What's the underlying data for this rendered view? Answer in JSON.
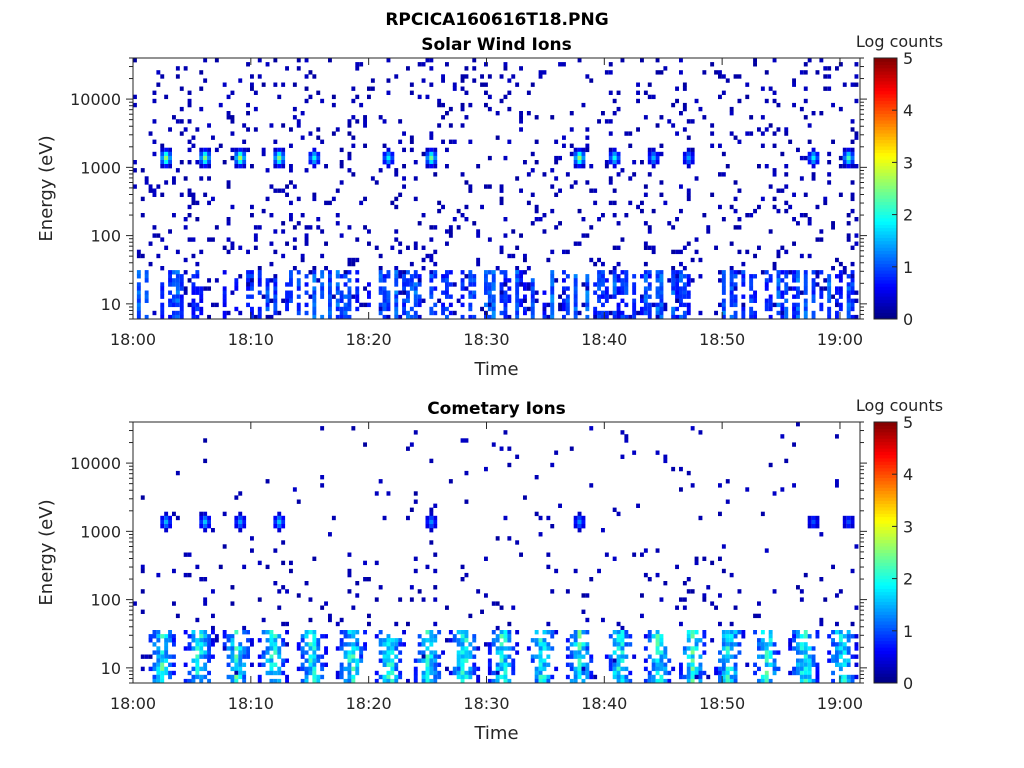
{
  "figure_title": "RPCICA160616T18.PNG",
  "chart_data": [
    {
      "type": "heatmap",
      "title": "Solar Wind Ions",
      "xlabel": "Time",
      "ylabel": "Energy (eV)",
      "x_range_minutes": [
        0,
        61.7
      ],
      "x_ticks": [
        {
          "minutes": 0,
          "label": "18:00"
        },
        {
          "minutes": 10,
          "label": "18:10"
        },
        {
          "minutes": 20,
          "label": "18:20"
        },
        {
          "minutes": 30,
          "label": "18:30"
        },
        {
          "minutes": 40,
          "label": "18:40"
        },
        {
          "minutes": 50,
          "label": "18:50"
        },
        {
          "minutes": 60,
          "label": "19:00"
        }
      ],
      "y_scale": "log",
      "y_range": [
        6,
        40000
      ],
      "y_ticks": [
        {
          "value": 10,
          "label": "10"
        },
        {
          "value": 100,
          "label": "100"
        },
        {
          "value": 1000,
          "label": "1000"
        },
        {
          "value": 10000,
          "label": "10000"
        }
      ],
      "colorbar": {
        "label": "Log counts",
        "range": [
          0,
          5
        ],
        "ticks": [
          "0",
          "1",
          "2",
          "3",
          "4",
          "5"
        ],
        "colormap": "jet"
      },
      "background_noise_density": 0.09,
      "bursts": [
        {
          "minutes": 2.6,
          "energy_eV": 1400,
          "peak_log_counts": 2.6
        },
        {
          "minutes": 5.8,
          "energy_eV": 1400,
          "peak_log_counts": 2.5
        },
        {
          "minutes": 8.9,
          "energy_eV": 1400,
          "peak_log_counts": 2.7
        },
        {
          "minutes": 12.1,
          "energy_eV": 1400,
          "peak_log_counts": 2.5
        },
        {
          "minutes": 15.2,
          "energy_eV": 1400,
          "peak_log_counts": 1.9
        },
        {
          "minutes": 21.5,
          "energy_eV": 1400,
          "peak_log_counts": 1.8
        },
        {
          "minutes": 25.2,
          "energy_eV": 1450,
          "peak_log_counts": 2.4
        },
        {
          "minutes": 37.6,
          "energy_eV": 1400,
          "peak_log_counts": 2.6
        },
        {
          "minutes": 40.7,
          "energy_eV": 1400,
          "peak_log_counts": 1.9
        },
        {
          "minutes": 44.0,
          "energy_eV": 1400,
          "peak_log_counts": 1.5
        },
        {
          "minutes": 47.1,
          "energy_eV": 1400,
          "peak_log_counts": 1.4
        },
        {
          "minutes": 57.5,
          "energy_eV": 1450,
          "peak_log_counts": 1.8
        },
        {
          "minutes": 60.6,
          "energy_eV": 1450,
          "peak_log_counts": 2.2
        }
      ],
      "low_energy_band": {
        "energy_range_eV": [
          8,
          30
        ],
        "peak_log_counts": 1.2
      }
    },
    {
      "type": "heatmap",
      "title": "Cometary Ions",
      "xlabel": "Time",
      "ylabel": "Energy (eV)",
      "x_range_minutes": [
        0,
        61.7
      ],
      "x_ticks": [
        {
          "minutes": 0,
          "label": "18:00"
        },
        {
          "minutes": 10,
          "label": "18:10"
        },
        {
          "minutes": 20,
          "label": "18:20"
        },
        {
          "minutes": 30,
          "label": "18:30"
        },
        {
          "minutes": 40,
          "label": "18:40"
        },
        {
          "minutes": 50,
          "label": "18:50"
        },
        {
          "minutes": 60,
          "label": "19:00"
        }
      ],
      "y_scale": "log",
      "y_range": [
        6,
        40000
      ],
      "y_ticks": [
        {
          "value": 10,
          "label": "10"
        },
        {
          "value": 100,
          "label": "100"
        },
        {
          "value": 1000,
          "label": "1000"
        },
        {
          "value": 10000,
          "label": "10000"
        }
      ],
      "colorbar": {
        "label": "Log counts",
        "range": [
          0,
          5
        ],
        "ticks": [
          "0",
          "1",
          "2",
          "3",
          "4",
          "5"
        ],
        "colormap": "jet"
      },
      "background_noise_density": 0.02,
      "bursts": [
        {
          "minutes": 2.6,
          "energy_eV": 1400,
          "peak_log_counts": 1.5
        },
        {
          "minutes": 5.8,
          "energy_eV": 1400,
          "peak_log_counts": 1.6
        },
        {
          "minutes": 8.9,
          "energy_eV": 1400,
          "peak_log_counts": 1.4
        },
        {
          "minutes": 12.1,
          "energy_eV": 1400,
          "peak_log_counts": 1.6
        },
        {
          "minutes": 25.2,
          "energy_eV": 1500,
          "peak_log_counts": 1.3
        },
        {
          "minutes": 37.6,
          "energy_eV": 1400,
          "peak_log_counts": 1.3
        },
        {
          "minutes": 57.5,
          "energy_eV": 1450,
          "peak_log_counts": 1.0
        },
        {
          "minutes": 60.6,
          "energy_eV": 1450,
          "peak_log_counts": 1.0
        }
      ],
      "low_energy_bursts_minutes": [
        2.5,
        5.6,
        8.8,
        11.9,
        15.2,
        18.6,
        21.8,
        25.1,
        28.1,
        31.4,
        34.7,
        37.9,
        41.3,
        44.6,
        47.5,
        50.6,
        53.8,
        57.0,
        60.2
      ],
      "low_energy_band": {
        "energy_range_eV": [
          8,
          35
        ],
        "peak_log_counts": 2.3
      }
    }
  ]
}
